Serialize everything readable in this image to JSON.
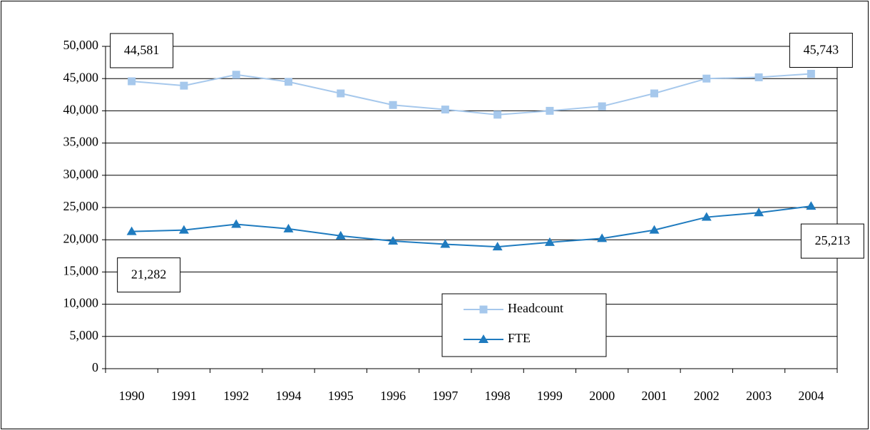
{
  "chart_data": {
    "type": "line",
    "categories": [
      "1990",
      "1991",
      "1992",
      "1994",
      "1995",
      "1996",
      "1997",
      "1998",
      "1999",
      "2000",
      "2001",
      "2002",
      "2003",
      "2004"
    ],
    "series": [
      {
        "name": "Headcount",
        "color": "#a6c8ec",
        "marker": "square",
        "values": [
          44581,
          43900,
          45600,
          44500,
          42700,
          40900,
          40200,
          39400,
          40000,
          40700,
          42700,
          45000,
          45200,
          45743
        ],
        "value_labels": [
          "44,581",
          null,
          null,
          null,
          null,
          null,
          null,
          null,
          null,
          null,
          null,
          null,
          null,
          "45,743"
        ]
      },
      {
        "name": "FTE",
        "color": "#1f7bbf",
        "marker": "triangle",
        "values": [
          21282,
          21500,
          22400,
          21700,
          20600,
          19800,
          19300,
          18900,
          19600,
          20200,
          21500,
          23500,
          24200,
          25213
        ],
        "value_labels": [
          "21,282",
          null,
          null,
          null,
          null,
          null,
          null,
          null,
          null,
          null,
          null,
          null,
          null,
          "25,213"
        ]
      }
    ],
    "ylim": [
      0,
      50000
    ],
    "yticks": [
      0,
      {
        "value": 5000,
        "label": "5,000"
      },
      {
        "value": 10000,
        "label": "10,000"
      },
      {
        "value": 15000,
        "label": "15,000"
      },
      {
        "value": 20000,
        "label": "20,000"
      },
      {
        "value": 25000,
        "label": "25,000"
      },
      {
        "value": 30000,
        "label": "30,000"
      },
      {
        "value": 35000,
        "label": "35,000"
      },
      {
        "value": 40000,
        "label": "40,000"
      },
      {
        "value": 45000,
        "label": "45,000"
      },
      {
        "value": 50000,
        "label": "50,000"
      }
    ],
    "grid": true,
    "legend": "bottom-center"
  }
}
